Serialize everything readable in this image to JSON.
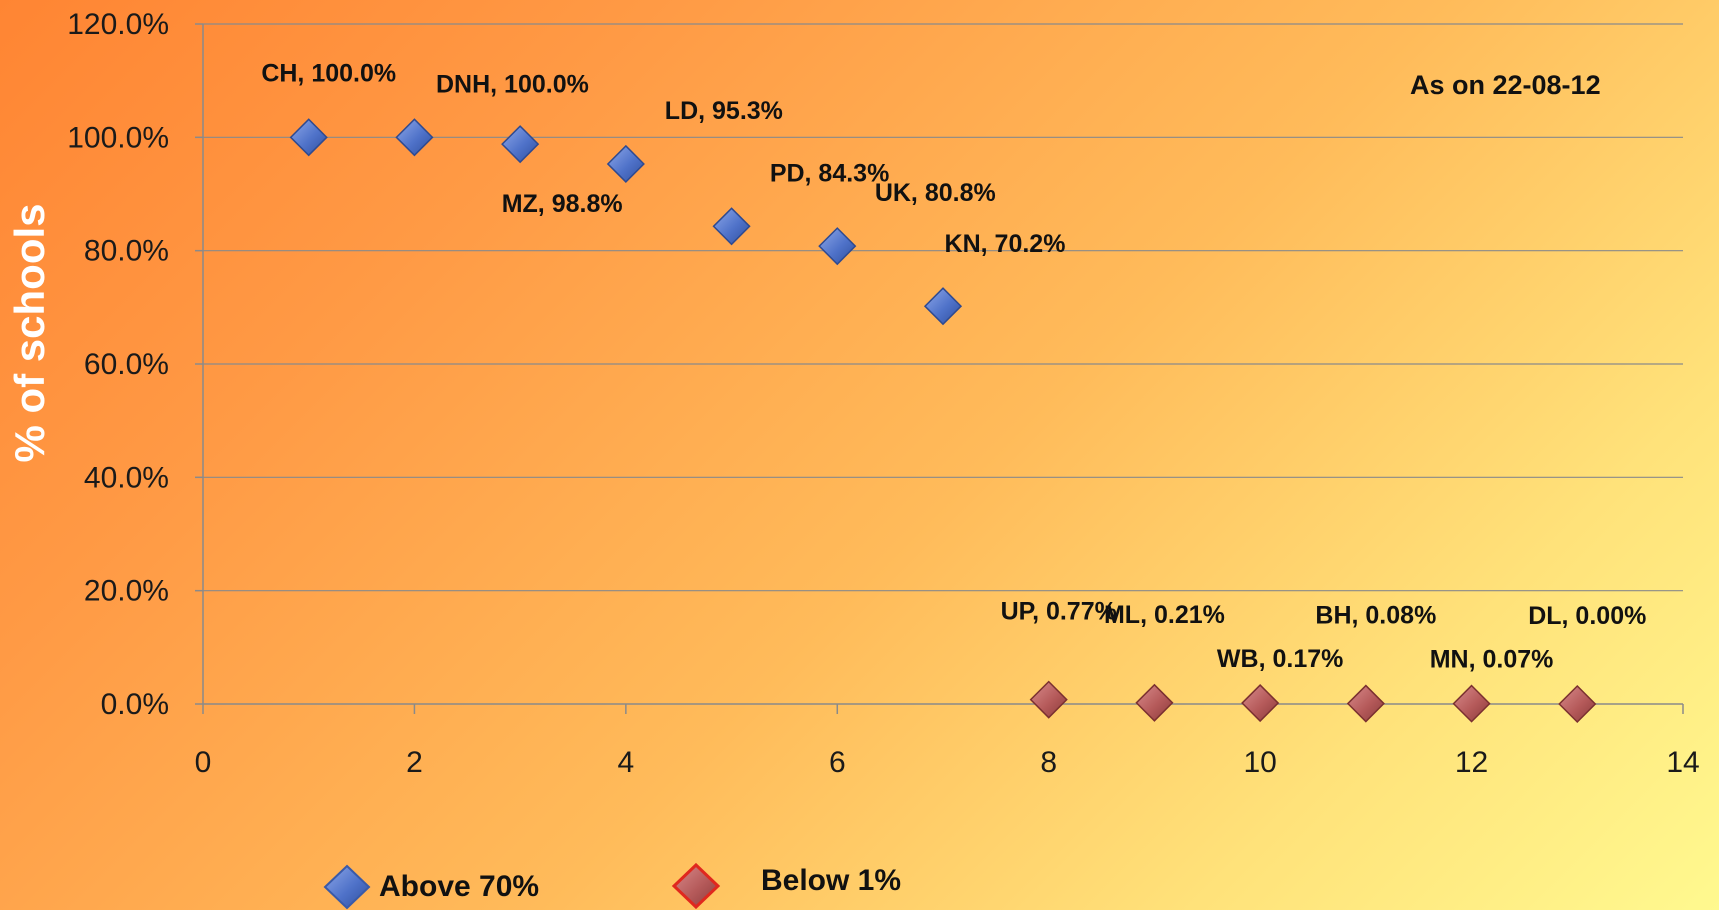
{
  "chart_data": {
    "type": "scatter",
    "title": "",
    "xlabel": "",
    "ylabel": "% of schools",
    "annotation": "As on 22-08-12",
    "xlim": [
      0,
      14
    ],
    "ylim": [
      0,
      120
    ],
    "x_ticks": [
      "0",
      "2",
      "4",
      "6",
      "8",
      "10",
      "12",
      "14"
    ],
    "y_ticks": [
      "0.0%",
      "20.0%",
      "40.0%",
      "60.0%",
      "80.0%",
      "100.0%",
      "120.0%"
    ],
    "grid": "horizontal",
    "legend_position": "bottom",
    "series": [
      {
        "name": "Above 70%",
        "color": "#4f72c9",
        "marker": "diamond",
        "points": [
          {
            "x": 1,
            "y": 100.0,
            "label": "CH, 100.0%",
            "label_pos": "above-left"
          },
          {
            "x": 2,
            "y": 100.0,
            "label": "DNH, 100.0%",
            "label_pos": "above-right"
          },
          {
            "x": 3,
            "y": 98.8,
            "label": "MZ, 98.8%",
            "label_pos": "below"
          },
          {
            "x": 4,
            "y": 95.3,
            "label": "LD, 95.3%",
            "label_pos": "above-right"
          },
          {
            "x": 5,
            "y": 84.3,
            "label": "PD, 84.3%",
            "label_pos": "above-right"
          },
          {
            "x": 6,
            "y": 80.8,
            "label": "UK, 80.8%",
            "label_pos": "above-right"
          },
          {
            "x": 7,
            "y": 70.2,
            "label": "KN, 70.2%",
            "label_pos": "above-right-high"
          }
        ]
      },
      {
        "name": "Below 1%",
        "color": "#b55a5a",
        "outline": "#e0281e",
        "marker": "diamond",
        "points": [
          {
            "x": 8,
            "y": 0.77,
            "label": "UP, 0.77%",
            "label_pos": "high"
          },
          {
            "x": 9,
            "y": 0.21,
            "label": "ML, 0.21%",
            "label_pos": "high"
          },
          {
            "x": 10,
            "y": 0.17,
            "label": "WB, 0.17%",
            "label_pos": "mid"
          },
          {
            "x": 11,
            "y": 0.08,
            "label": "BH, 0.08%",
            "label_pos": "high"
          },
          {
            "x": 12,
            "y": 0.07,
            "label": "MN, 0.07%",
            "label_pos": "mid"
          },
          {
            "x": 13,
            "y": 0.0,
            "label": "DL, 0.00%",
            "label_pos": "high"
          }
        ]
      }
    ]
  }
}
